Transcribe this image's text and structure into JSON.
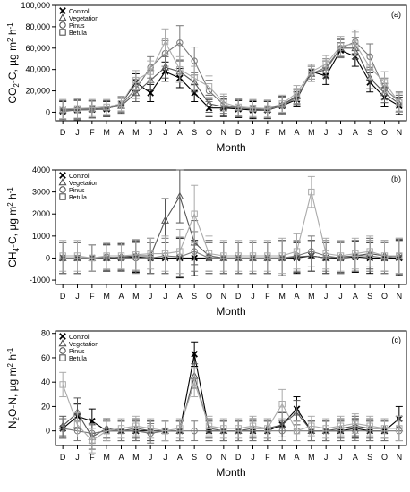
{
  "chart_data": [
    {
      "type": "line",
      "panel_label": "(a)",
      "ylabel_main": "CO",
      "ylabel_sub": "2",
      "ylabel_rest": "-C, µg  m",
      "ylabel_sup1": "2",
      "ylabel_rest2": " h",
      "ylabel_sup2": "-1",
      "xlabel": "Month",
      "categories": [
        "D",
        "J",
        "F",
        "M",
        "A",
        "M",
        "J",
        "J",
        "A",
        "S",
        "O",
        "N",
        "D",
        "J",
        "F",
        "M",
        "A",
        "M",
        "J",
        "J",
        "A",
        "S",
        "O",
        "N"
      ],
      "ylim": [
        -8000,
        100000
      ],
      "yticks": [
        0,
        20000,
        40000,
        60000,
        80000,
        100000
      ],
      "ytick_labels": [
        "0",
        "20,000",
        "40,000",
        "60,000",
        "80,000",
        "100,000"
      ],
      "legend_position": "top-left",
      "series": [
        {
          "name": "Control",
          "marker": "x",
          "color": "#000000",
          "values": [
            1000,
            2000,
            2500,
            3000,
            8000,
            28000,
            18000,
            38000,
            32000,
            18000,
            4000,
            4000,
            3000,
            2000,
            2000,
            6000,
            12000,
            38000,
            34000,
            58000,
            52000,
            28000,
            14000,
            6000
          ],
          "errors": [
            9000,
            9000,
            8000,
            7000,
            7000,
            8000,
            8000,
            9000,
            9000,
            8000,
            8000,
            8000,
            8000,
            8000,
            8000,
            8000,
            7000,
            7000,
            8000,
            7000,
            9000,
            9000,
            9000,
            8000
          ]
        },
        {
          "name": "Vegetation",
          "marker": "triangle",
          "color": "#555555",
          "values": [
            2000,
            3000,
            3000,
            4000,
            6000,
            18000,
            30000,
            42000,
            38000,
            28000,
            8000,
            5000,
            4000,
            3000,
            2500,
            7000,
            15000,
            36000,
            40000,
            60000,
            60000,
            32000,
            18000,
            8000
          ],
          "errors": [
            9000,
            9000,
            8000,
            7000,
            7000,
            8000,
            9000,
            10000,
            10000,
            9000,
            8000,
            8000,
            8000,
            8000,
            8000,
            8000,
            7000,
            7000,
            8000,
            8000,
            10000,
            10000,
            9000,
            8000
          ]
        },
        {
          "name": "Pinus",
          "marker": "circle",
          "color": "#777777",
          "values": [
            1500,
            2000,
            2500,
            3500,
            7000,
            22000,
            42000,
            55000,
            65000,
            48000,
            20000,
            7000,
            4000,
            3000,
            2500,
            6000,
            14000,
            36000,
            42000,
            60000,
            66000,
            52000,
            22000,
            10000
          ],
          "errors": [
            9000,
            9000,
            8000,
            7000,
            7000,
            9000,
            10000,
            12000,
            16000,
            13000,
            10000,
            8000,
            8000,
            8000,
            8000,
            8000,
            7000,
            7000,
            8000,
            9000,
            11000,
            12000,
            10000,
            9000
          ]
        },
        {
          "name": "Betula",
          "marker": "square",
          "color": "#aaaaaa",
          "values": [
            3000,
            3500,
            4000,
            5000,
            8000,
            30000,
            38000,
            66000,
            40000,
            32000,
            24000,
            9000,
            5000,
            4000,
            3500,
            8000,
            18000,
            38000,
            45000,
            62000,
            64000,
            42000,
            28000,
            9000
          ],
          "errors": [
            9000,
            9000,
            8000,
            7000,
            7000,
            9000,
            10000,
            12000,
            12000,
            11000,
            10000,
            8000,
            8000,
            8000,
            8000,
            8000,
            7000,
            7000,
            8000,
            9000,
            11000,
            11000,
            10000,
            9000
          ]
        }
      ]
    },
    {
      "type": "line",
      "panel_label": "(b)",
      "ylabel_main": "CH",
      "ylabel_sub": "4",
      "ylabel_rest": "-C, µg  m",
      "ylabel_sup1": "2",
      "ylabel_rest2": " h",
      "ylabel_sup2": "-1",
      "xlabel": "Month",
      "categories": [
        "D",
        "J",
        "F",
        "M",
        "A",
        "M",
        "J",
        "J",
        "A",
        "S",
        "O",
        "N",
        "D",
        "J",
        "F",
        "M",
        "A",
        "M",
        "J",
        "J",
        "A",
        "S",
        "O",
        "N"
      ],
      "ylim": [
        -1200,
        4000
      ],
      "yticks": [
        -1000,
        0,
        1000,
        2000,
        3000,
        4000
      ],
      "ytick_labels": [
        "-1000",
        "0",
        "1000",
        "2000",
        "3000",
        "4000"
      ],
      "legend_position": "top-left",
      "series": [
        {
          "name": "Control",
          "marker": "x",
          "color": "#000000",
          "values": [
            0,
            0,
            0,
            0,
            0,
            50,
            0,
            0,
            0,
            0,
            0,
            0,
            0,
            0,
            0,
            0,
            0,
            100,
            0,
            0,
            50,
            0,
            0,
            0
          ],
          "errors": [
            700,
            700,
            600,
            600,
            600,
            700,
            700,
            700,
            900,
            800,
            700,
            700,
            700,
            700,
            700,
            800,
            700,
            700,
            700,
            700,
            700,
            700,
            700,
            800
          ]
        },
        {
          "name": "Vegetation",
          "marker": "triangle",
          "color": "#555555",
          "values": [
            0,
            0,
            0,
            0,
            50,
            100,
            100,
            1700,
            2800,
            700,
            100,
            0,
            0,
            0,
            0,
            0,
            50,
            100,
            0,
            50,
            100,
            200,
            100,
            50
          ],
          "errors": [
            700,
            700,
            600,
            600,
            600,
            700,
            800,
            1000,
            1200,
            1000,
            700,
            700,
            700,
            700,
            700,
            800,
            700,
            700,
            700,
            700,
            700,
            700,
            700,
            800
          ]
        },
        {
          "name": "Pinus",
          "marker": "circle",
          "color": "#777777",
          "values": [
            0,
            0,
            0,
            50,
            0,
            0,
            0,
            100,
            50,
            300,
            0,
            0,
            0,
            0,
            0,
            0,
            100,
            300,
            100,
            0,
            100,
            100,
            0,
            100
          ],
          "errors": [
            700,
            700,
            600,
            600,
            600,
            700,
            700,
            800,
            900,
            900,
            700,
            700,
            700,
            700,
            700,
            800,
            700,
            700,
            700,
            700,
            700,
            700,
            700,
            800
          ]
        },
        {
          "name": "Betula",
          "marker": "square",
          "color": "#aaaaaa",
          "values": [
            100,
            100,
            0,
            100,
            100,
            150,
            200,
            200,
            300,
            2000,
            200,
            100,
            100,
            100,
            100,
            100,
            300,
            3000,
            200,
            100,
            200,
            300,
            100,
            100
          ],
          "errors": [
            700,
            700,
            600,
            600,
            600,
            700,
            700,
            800,
            1000,
            1300,
            800,
            700,
            700,
            700,
            700,
            800,
            800,
            700,
            700,
            700,
            700,
            700,
            700,
            800
          ]
        }
      ]
    },
    {
      "type": "line",
      "panel_label": "(c)",
      "ylabel_main": "N",
      "ylabel_sub": "2",
      "ylabel_rest": "O-N, µg  m",
      "ylabel_sup1": "2",
      "ylabel_rest2": " h",
      "ylabel_sup2": "-1",
      "xlabel": "Month",
      "categories": [
        "D",
        "J",
        "F",
        "M",
        "A",
        "M",
        "J",
        "J",
        "A",
        "S",
        "O",
        "N",
        "D",
        "J",
        "F",
        "M",
        "A",
        "M",
        "J",
        "J",
        "A",
        "S",
        "O",
        "N"
      ],
      "ylim": [
        -12,
        82
      ],
      "yticks": [
        0,
        20,
        40,
        60,
        80
      ],
      "ytick_labels": [
        "0",
        "20",
        "40",
        "60",
        "80"
      ],
      "legend_position": "top-left",
      "series": [
        {
          "name": "Control",
          "marker": "x",
          "color": "#000000",
          "values": [
            2,
            12,
            8,
            0,
            0,
            0,
            0,
            0,
            0,
            63,
            0,
            0,
            0,
            0,
            0,
            5,
            18,
            0,
            0,
            0,
            2,
            0,
            0,
            10
          ],
          "errors": [
            8,
            10,
            10,
            8,
            8,
            8,
            8,
            8,
            8,
            10,
            8,
            8,
            8,
            8,
            8,
            10,
            10,
            8,
            8,
            8,
            8,
            8,
            8,
            10
          ]
        },
        {
          "name": "Vegetation",
          "marker": "triangle",
          "color": "#555555",
          "values": [
            4,
            15,
            -5,
            2,
            0,
            2,
            0,
            0,
            0,
            45,
            2,
            0,
            0,
            2,
            2,
            5,
            15,
            0,
            0,
            2,
            4,
            2,
            2,
            2
          ],
          "errors": [
            8,
            12,
            10,
            8,
            8,
            8,
            8,
            8,
            8,
            10,
            8,
            8,
            8,
            8,
            8,
            10,
            10,
            8,
            8,
            8,
            8,
            8,
            8,
            10
          ]
        },
        {
          "name": "Pinus",
          "marker": "circle",
          "color": "#777777",
          "values": [
            2,
            0,
            -2,
            0,
            0,
            0,
            -2,
            0,
            0,
            0,
            0,
            0,
            0,
            0,
            0,
            0,
            0,
            0,
            0,
            0,
            0,
            0,
            0,
            0
          ],
          "errors": [
            8,
            8,
            8,
            8,
            8,
            8,
            8,
            8,
            8,
            8,
            8,
            8,
            8,
            8,
            8,
            8,
            8,
            8,
            8,
            8,
            8,
            8,
            8,
            8
          ]
        },
        {
          "name": "Betula",
          "marker": "square",
          "color": "#aaaaaa",
          "values": [
            38,
            5,
            -8,
            0,
            2,
            4,
            2,
            0,
            2,
            40,
            4,
            2,
            2,
            4,
            2,
            22,
            0,
            4,
            2,
            4,
            6,
            4,
            2,
            2
          ],
          "errors": [
            10,
            10,
            10,
            8,
            8,
            8,
            8,
            8,
            8,
            12,
            8,
            8,
            8,
            8,
            8,
            12,
            8,
            8,
            8,
            8,
            8,
            8,
            8,
            10
          ]
        }
      ]
    }
  ]
}
